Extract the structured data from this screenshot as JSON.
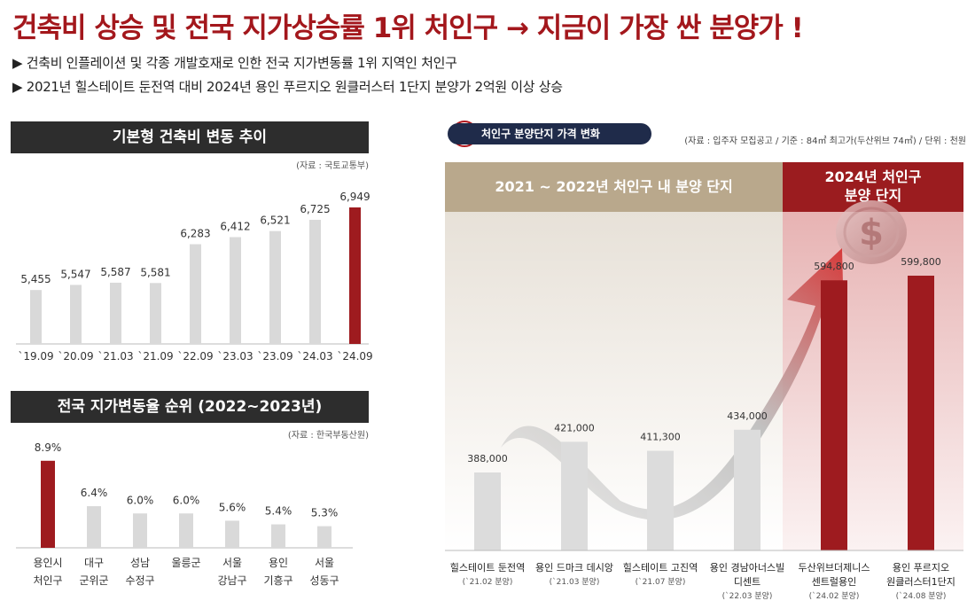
{
  "headline": "건축비 상승 및 전국 지가상승률 1위 처인구 → 지금이 가장 싼 분양가 !",
  "bullets": [
    "▶ 건축비 인플레이션 및 각종 개발호재로 인한 전국 지가변동률 1위 지역인 처인구",
    "▶ 2021년 힐스테이트 둔전역 대비 2024년 용인 푸르지오 원클러스터 1단지 분양가 2억원 이상 상승"
  ],
  "chart_data": [
    {
      "type": "bar",
      "title": "기본형 건축비 변동 추이",
      "source": "(자료 : 국토교통부)",
      "categories": [
        "`19.09",
        "`20.09",
        "`21.03",
        "`21.09",
        "`22.09",
        "`23.03",
        "`23.09",
        "`24.03",
        "`24.09"
      ],
      "values": [
        5455,
        5547,
        5587,
        5581,
        6283,
        6412,
        6521,
        6725,
        6949
      ],
      "value_labels": [
        "5,455",
        "5,547",
        "5,587",
        "5,581",
        "6,283",
        "6,412",
        "6,521",
        "6,725",
        "6,949"
      ],
      "highlight_index": 8,
      "colors": {
        "bar": "#d9d9d9",
        "highlight": "#9e1b1f"
      }
    },
    {
      "type": "bar",
      "title": "전국 지가변동율 순위 (2022~2023년)",
      "source": "(자료 : 한국부동산원)",
      "categories": [
        [
          "용인시",
          "처인구"
        ],
        [
          "대구",
          "군위군"
        ],
        [
          "성남",
          "수정구"
        ],
        [
          "울릉군"
        ],
        [
          "서울",
          "강남구"
        ],
        [
          "용인",
          "기흥구"
        ],
        [
          "서울",
          "성동구"
        ]
      ],
      "values": [
        8.9,
        6.4,
        6.0,
        6.0,
        5.6,
        5.4,
        5.3
      ],
      "value_labels": [
        "8.9%",
        "6.4%",
        "6.0%",
        "6.0%",
        "5.6%",
        "5.4%",
        "5.3%"
      ],
      "highlight_index": 0,
      "colors": {
        "bar": "#d9d9d9",
        "highlight": "#9e1b1f"
      }
    },
    {
      "type": "bar",
      "title": "처인구 분양단지 가격 변화",
      "source": "(자료 : 입주자 모집공고 / 기준 : 84㎡ 최고가(두산위브 74㎡) / 단위 : 천원",
      "groups": [
        {
          "label": "2021 ~ 2022년 처인구 내 분양 단지"
        },
        {
          "label": "2024년 처인구\n분양 단지"
        }
      ],
      "categories": [
        {
          "name": [
            "힐스테이트 둔전역"
          ],
          "sub": "(`21.02 분양)"
        },
        {
          "name": [
            "용인 드마크 데시앙"
          ],
          "sub": "(`21.03 분양)"
        },
        {
          "name": [
            "힐스테이트 고진역"
          ],
          "sub": "(`21.07 분양)"
        },
        {
          "name": [
            "용인 경남아너스빌",
            "디센트"
          ],
          "sub": "(`22.03 분양)"
        },
        {
          "name": [
            "두산위브더제니스",
            "센트럴용인"
          ],
          "sub": "(`24.02 분양)"
        },
        {
          "name": [
            "용인 푸르지오",
            "원클러스터1단지"
          ],
          "sub": "(`24.08 분양)"
        }
      ],
      "values": [
        388000,
        421000,
        411300,
        434000,
        594800,
        599800
      ],
      "value_labels": [
        "388,000",
        "421,000",
        "411,300",
        "434,000",
        "594,800",
        "599,800"
      ],
      "highlight_indices": [
        4,
        5
      ],
      "colors": {
        "bar": "#dcdcdc",
        "highlight": "#9e1b1f",
        "band_left": "#b9a88c",
        "band_right": "#9b1c1f"
      }
    }
  ]
}
